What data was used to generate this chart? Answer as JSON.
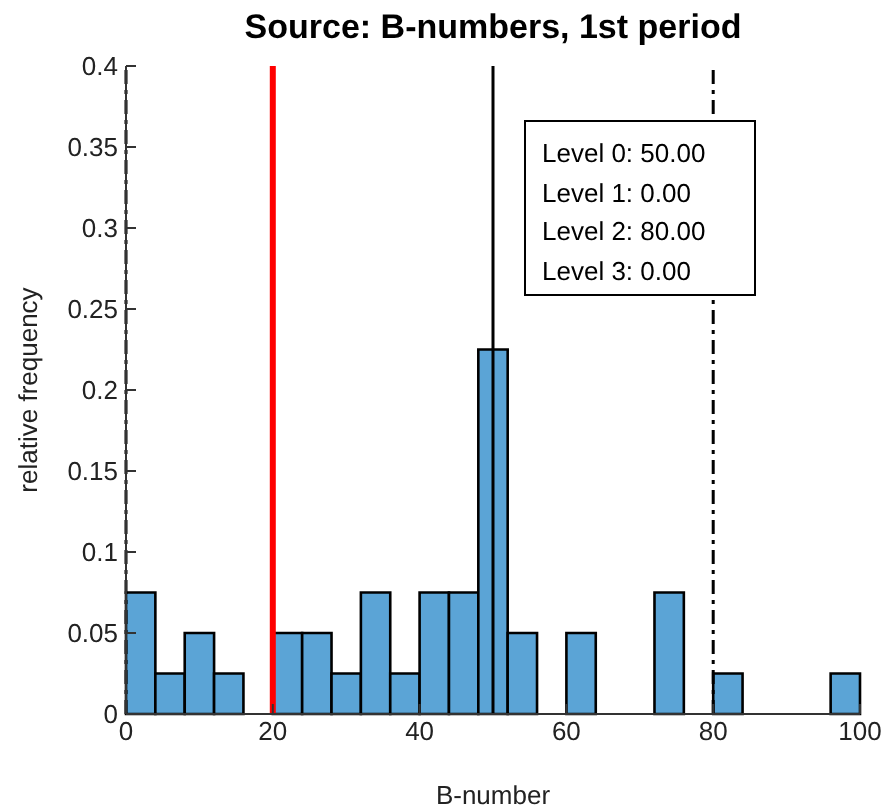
{
  "chart_data": {
    "type": "histogram",
    "title": "Source: B-numbers, 1st period",
    "xlabel": "B-number",
    "ylabel": "relative frequency",
    "bins": [
      0,
      4,
      8,
      12,
      16,
      20,
      24,
      28,
      32,
      36,
      40,
      44,
      48,
      52,
      56,
      60,
      64,
      68,
      72,
      76,
      80,
      84,
      88,
      92,
      96,
      100
    ],
    "values": [
      0.075,
      0.025,
      0.05,
      0.025,
      0,
      0.05,
      0.05,
      0.025,
      0.075,
      0.025,
      0.075,
      0.075,
      0.225,
      0.05,
      0,
      0.05,
      0,
      0,
      0.075,
      0,
      0.025,
      0,
      0,
      0,
      0.025
    ],
    "color": "#5ba4d6",
    "xlim": [
      0,
      100
    ],
    "xticks": [
      0,
      20,
      40,
      60,
      80,
      100
    ],
    "ylim": [
      0,
      0.4
    ],
    "yticks": [
      0,
      0.05,
      0.1,
      0.15,
      0.2,
      0.25,
      0.3,
      0.35,
      0.4
    ],
    "grid": false,
    "ref_lines": [
      {
        "axis": "x",
        "value": 20,
        "color": "#ff0000",
        "line_style": "solid"
      },
      {
        "axis": "x",
        "value": 50,
        "color": "#000000",
        "line_style": "solid"
      },
      {
        "axis": "x",
        "value": 80,
        "color": "#000000",
        "line_style": "dashdot"
      },
      {
        "axis": "x",
        "value": 0,
        "color": "#000000",
        "line_style": "dashdot"
      }
    ],
    "annotations": [
      "Level 0: 50.00",
      "Level 1: 0.00",
      "Level 2: 80.00",
      "Level 3: 0.00"
    ]
  }
}
